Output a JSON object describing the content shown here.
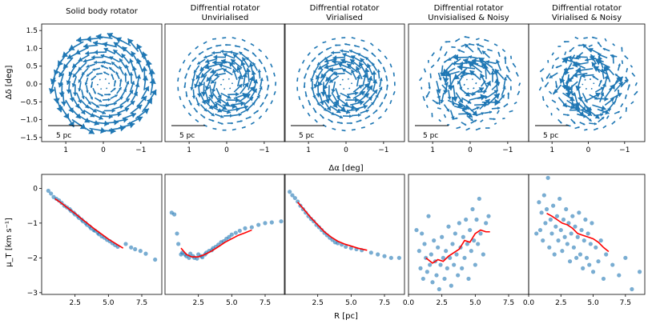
{
  "figure": {
    "top_ylabel": "Δδ [deg]",
    "top_xlabel": "Δα [deg]",
    "bottom_ylabel": "μ_T [km s⁻¹]",
    "bottom_xlabel": "R [pc]",
    "scalebar_label": "5 pc"
  },
  "chart_data": [
    {
      "type": "quiver",
      "title": "Solid body rotator",
      "xlim": [
        1.6,
        -1.6
      ],
      "ylim": [
        -1.7,
        1.6
      ],
      "xticks": [
        "1",
        "0",
        "−1"
      ],
      "yticks": [
        "1.5",
        "1.0",
        "0.5",
        "0.0",
        "−0.5",
        "−1.0",
        "−1.5"
      ],
      "field": "solid_body",
      "color": "#1f77b4"
    },
    {
      "type": "quiver",
      "title": "Diffrential rotator Unvirialised",
      "xlim": [
        1.6,
        -1.6
      ],
      "ylim": [
        -1.7,
        1.6
      ],
      "xticks": [
        "1",
        "0",
        "−1"
      ],
      "field": "differential",
      "color": "#1f77b4"
    },
    {
      "type": "quiver",
      "title": "Diffrential rotator Virialised",
      "xlim": [
        1.6,
        -1.6
      ],
      "ylim": [
        -1.7,
        1.6
      ],
      "xticks": [
        "1",
        "0",
        "−1"
      ],
      "field": "differential",
      "color": "#1f77b4"
    },
    {
      "type": "quiver",
      "title": "Diffrential rotator Unvisialised & Noisy",
      "xlim": [
        1.6,
        -1.6
      ],
      "ylim": [
        -1.7,
        1.6
      ],
      "xticks": [
        "1",
        "0",
        "−1"
      ],
      "field": "noisy",
      "color": "#1f77b4"
    },
    {
      "type": "quiver",
      "title": "Diffrential rotator Virialised & Noisy",
      "xlim": [
        1.6,
        -1.6
      ],
      "ylim": [
        -1.7,
        1.6
      ],
      "xticks": [
        "1",
        "0",
        "−1"
      ],
      "field": "noisy",
      "color": "#1f77b4"
    },
    {
      "type": "scatter",
      "xlim": [
        0,
        9
      ],
      "ylim": [
        -3.05,
        0.4
      ],
      "xticks": [
        "2.5",
        "5.0",
        "7.5"
      ],
      "yticks": [
        "0",
        "−1",
        "−2",
        "−3"
      ],
      "points": [
        [
          0.5,
          -0.07
        ],
        [
          0.7,
          -0.15
        ],
        [
          0.9,
          -0.25
        ],
        [
          1.1,
          -0.3
        ],
        [
          1.3,
          -0.35
        ],
        [
          1.5,
          -0.42
        ],
        [
          1.7,
          -0.5
        ],
        [
          1.9,
          -0.55
        ],
        [
          2.1,
          -0.6
        ],
        [
          2.2,
          -0.65
        ],
        [
          2.4,
          -0.7
        ],
        [
          2.5,
          -0.75
        ],
        [
          2.7,
          -0.8
        ],
        [
          2.8,
          -0.85
        ],
        [
          3.0,
          -0.9
        ],
        [
          3.1,
          -0.95
        ],
        [
          3.3,
          -1.0
        ],
        [
          3.4,
          -1.05
        ],
        [
          3.6,
          -1.1
        ],
        [
          3.7,
          -1.15
        ],
        [
          3.9,
          -1.2
        ],
        [
          4.0,
          -1.22
        ],
        [
          4.2,
          -1.28
        ],
        [
          4.3,
          -1.32
        ],
        [
          4.5,
          -1.38
        ],
        [
          4.7,
          -1.42
        ],
        [
          4.9,
          -1.48
        ],
        [
          5.1,
          -1.52
        ],
        [
          5.3,
          -1.58
        ],
        [
          5.5,
          -1.63
        ],
        [
          5.7,
          -1.68
        ],
        [
          6.3,
          -1.6
        ],
        [
          6.7,
          -1.7
        ],
        [
          7.0,
          -1.75
        ],
        [
          7.4,
          -1.8
        ],
        [
          7.8,
          -1.88
        ],
        [
          8.5,
          -2.05
        ]
      ],
      "line_x": [
        1.0,
        1.5,
        2.0,
        2.5,
        3.0,
        3.5,
        4.0,
        4.5,
        5.0,
        5.5,
        6.1
      ],
      "line_y": [
        -0.3,
        -0.43,
        -0.58,
        -0.72,
        -0.88,
        -1.03,
        -1.18,
        -1.32,
        -1.46,
        -1.58,
        -1.72
      ],
      "point_color": "#1f77b4",
      "line_color": "#ff0000"
    },
    {
      "type": "scatter",
      "xlim": [
        0,
        9
      ],
      "ylim": [
        -3.05,
        0.4
      ],
      "xticks": [
        "2.5",
        "5.0",
        "7.5"
      ],
      "points": [
        [
          0.5,
          -0.7
        ],
        [
          0.7,
          -0.75
        ],
        [
          0.9,
          -1.3
        ],
        [
          1.0,
          -1.6
        ],
        [
          1.2,
          -1.9
        ],
        [
          1.3,
          -1.85
        ],
        [
          1.5,
          -1.9
        ],
        [
          1.6,
          -1.95
        ],
        [
          1.8,
          -2.0
        ],
        [
          1.9,
          -1.88
        ],
        [
          2.1,
          -1.95
        ],
        [
          2.2,
          -2.0
        ],
        [
          2.4,
          -2.02
        ],
        [
          2.5,
          -1.9
        ],
        [
          2.7,
          -1.95
        ],
        [
          2.8,
          -1.98
        ],
        [
          3.0,
          -1.9
        ],
        [
          3.1,
          -1.85
        ],
        [
          3.3,
          -1.8
        ],
        [
          3.5,
          -1.78
        ],
        [
          3.6,
          -1.72
        ],
        [
          3.8,
          -1.68
        ],
        [
          4.0,
          -1.62
        ],
        [
          4.2,
          -1.55
        ],
        [
          4.4,
          -1.52
        ],
        [
          4.6,
          -1.45
        ],
        [
          4.8,
          -1.4
        ],
        [
          5.0,
          -1.33
        ],
        [
          5.3,
          -1.28
        ],
        [
          5.6,
          -1.22
        ],
        [
          6.0,
          -1.15
        ],
        [
          6.5,
          -1.12
        ],
        [
          7.0,
          -1.05
        ],
        [
          7.5,
          -1.0
        ],
        [
          8.0,
          -0.98
        ],
        [
          8.7,
          -0.95
        ]
      ],
      "line_x": [
        1.2,
        1.6,
        2.0,
        2.5,
        3.0,
        3.5,
        4.0,
        4.5,
        5.0,
        5.5,
        6.0,
        6.5
      ],
      "line_y": [
        -1.72,
        -1.9,
        -1.97,
        -1.97,
        -1.9,
        -1.8,
        -1.68,
        -1.55,
        -1.45,
        -1.35,
        -1.28,
        -1.2
      ],
      "point_color": "#1f77b4",
      "line_color": "#ff0000"
    },
    {
      "type": "scatter",
      "xlim": [
        0,
        9
      ],
      "ylim": [
        -3.05,
        0.4
      ],
      "xticks": [
        "2.5",
        "5.0",
        "7.5"
      ],
      "points": [
        [
          0.4,
          -0.1
        ],
        [
          0.6,
          -0.2
        ],
        [
          0.8,
          -0.28
        ],
        [
          1.0,
          -0.38
        ],
        [
          1.2,
          -0.5
        ],
        [
          1.4,
          -0.6
        ],
        [
          1.6,
          -0.7
        ],
        [
          1.8,
          -0.8
        ],
        [
          2.0,
          -0.88
        ],
        [
          2.2,
          -0.95
        ],
        [
          2.4,
          -1.05
        ],
        [
          2.6,
          -1.12
        ],
        [
          2.8,
          -1.2
        ],
        [
          3.0,
          -1.28
        ],
        [
          3.2,
          -1.35
        ],
        [
          3.4,
          -1.42
        ],
        [
          3.6,
          -1.48
        ],
        [
          3.8,
          -1.55
        ],
        [
          4.0,
          -1.58
        ],
        [
          4.3,
          -1.62
        ],
        [
          4.6,
          -1.68
        ],
        [
          5.0,
          -1.72
        ],
        [
          5.4,
          -1.75
        ],
        [
          5.8,
          -1.78
        ],
        [
          6.5,
          -1.85
        ],
        [
          7.0,
          -1.9
        ],
        [
          7.5,
          -1.95
        ],
        [
          8.0,
          -2.0
        ],
        [
          8.6,
          -2.0
        ]
      ],
      "line_x": [
        1.0,
        1.5,
        2.0,
        2.5,
        3.0,
        3.5,
        4.0,
        4.5,
        5.0,
        5.5,
        6.2
      ],
      "line_y": [
        -0.4,
        -0.62,
        -0.85,
        -1.05,
        -1.25,
        -1.4,
        -1.52,
        -1.6,
        -1.66,
        -1.72,
        -1.78
      ],
      "point_color": "#1f77b4",
      "line_color": "#ff0000"
    },
    {
      "type": "scatter",
      "xlim": [
        0,
        9
      ],
      "ylim": [
        -3.05,
        0.4
      ],
      "xticks": [
        "0.0",
        "2.5",
        "5.0",
        "7.5"
      ],
      "points": [
        [
          0.6,
          -1.2
        ],
        [
          0.8,
          -1.8
        ],
        [
          0.9,
          -2.3
        ],
        [
          1.0,
          -1.3
        ],
        [
          1.1,
          -2.6
        ],
        [
          1.2,
          -1.6
        ],
        [
          1.3,
          -2.0
        ],
        [
          1.4,
          -2.4
        ],
        [
          1.5,
          -0.8
        ],
        [
          1.6,
          -2.2
        ],
        [
          1.7,
          -1.9
        ],
        [
          1.8,
          -2.7
        ],
        [
          1.9,
          -1.5
        ],
        [
          2.0,
          -2.1
        ],
        [
          2.1,
          -2.5
        ],
        [
          2.2,
          -1.7
        ],
        [
          2.3,
          -2.9
        ],
        [
          2.4,
          -2.2
        ],
        [
          2.5,
          -1.4
        ],
        [
          2.6,
          -2.0
        ],
        [
          2.7,
          -2.6
        ],
        [
          2.8,
          -1.8
        ],
        [
          2.9,
          -2.3
        ],
        [
          3.0,
          -1.1
        ],
        [
          3.1,
          -2.0
        ],
        [
          3.2,
          -2.8
        ],
        [
          3.3,
          -1.6
        ],
        [
          3.4,
          -2.2
        ],
        [
          3.5,
          -1.3
        ],
        [
          3.6,
          -1.9
        ],
        [
          3.7,
          -2.5
        ],
        [
          3.8,
          -1.0
        ],
        [
          3.9,
          -1.7
        ],
        [
          4.0,
          -2.3
        ],
        [
          4.1,
          -1.4
        ],
        [
          4.2,
          -2.0
        ],
        [
          4.3,
          -0.9
        ],
        [
          4.4,
          -1.6
        ],
        [
          4.5,
          -2.6
        ],
        [
          4.6,
          -1.2
        ],
        [
          4.7,
          -1.8
        ],
        [
          4.8,
          -0.6
        ],
        [
          4.9,
          -1.5
        ],
        [
          5.0,
          -2.2
        ],
        [
          5.1,
          -0.9
        ],
        [
          5.2,
          -1.6
        ],
        [
          5.3,
          -0.3
        ],
        [
          5.4,
          -1.3
        ],
        [
          5.6,
          -1.9
        ],
        [
          5.8,
          -1.0
        ],
        [
          6.0,
          -0.8
        ]
      ],
      "line_x": [
        1.3,
        1.8,
        2.2,
        2.6,
        3.0,
        3.4,
        3.8,
        4.2,
        4.6,
        5.0,
        5.4,
        5.8,
        6.1
      ],
      "line_y": [
        -2.0,
        -2.15,
        -2.05,
        -2.1,
        -1.95,
        -1.85,
        -1.75,
        -1.5,
        -1.55,
        -1.3,
        -1.2,
        -1.25,
        -1.25
      ],
      "point_color": "#1f77b4",
      "line_color": "#ff0000"
    },
    {
      "type": "scatter",
      "xlim": [
        0,
        9
      ],
      "ylim": [
        -3.05,
        0.4
      ],
      "xticks": [
        "0.0",
        "2.5",
        "5.0",
        "7.5"
      ],
      "points": [
        [
          0.6,
          -1.3
        ],
        [
          0.8,
          -0.4
        ],
        [
          0.9,
          -1.2
        ],
        [
          1.0,
          -0.7
        ],
        [
          1.1,
          -1.5
        ],
        [
          1.2,
          -0.2
        ],
        [
          1.3,
          -1.0
        ],
        [
          1.4,
          -0.6
        ],
        [
          1.5,
          0.3
        ],
        [
          1.6,
          -1.7
        ],
        [
          1.7,
          -0.9
        ],
        [
          1.8,
          -1.3
        ],
        [
          1.9,
          -0.5
        ],
        [
          2.0,
          -1.9
        ],
        [
          2.1,
          -1.1
        ],
        [
          2.2,
          -0.8
        ],
        [
          2.3,
          -1.5
        ],
        [
          2.4,
          -0.3
        ],
        [
          2.5,
          -1.2
        ],
        [
          2.6,
          -1.8
        ],
        [
          2.7,
          -0.9
        ],
        [
          2.8,
          -1.4
        ],
        [
          2.9,
          -0.6
        ],
        [
          3.0,
          -1.6
        ],
        [
          3.1,
          -1.0
        ],
        [
          3.2,
          -2.1
        ],
        [
          3.3,
          -1.3
        ],
        [
          3.4,
          -0.8
        ],
        [
          3.5,
          -1.7
        ],
        [
          3.6,
          -1.1
        ],
        [
          3.7,
          -2.0
        ],
        [
          3.8,
          -1.4
        ],
        [
          3.9,
          -0.7
        ],
        [
          4.0,
          -1.9
        ],
        [
          4.1,
          -1.2
        ],
        [
          4.2,
          -2.3
        ],
        [
          4.3,
          -1.5
        ],
        [
          4.4,
          -0.9
        ],
        [
          4.5,
          -2.0
        ],
        [
          4.6,
          -1.3
        ],
        [
          4.7,
          -2.2
        ],
        [
          4.8,
          -1.6
        ],
        [
          4.9,
          -1.0
        ],
        [
          5.0,
          -2.4
        ],
        [
          5.2,
          -1.7
        ],
        [
          5.4,
          -2.1
        ],
        [
          5.6,
          -1.5
        ],
        [
          5.8,
          -2.6
        ],
        [
          6.0,
          -1.9
        ],
        [
          6.5,
          -2.2
        ],
        [
          7.0,
          -2.5
        ],
        [
          7.5,
          -2.0
        ],
        [
          8.0,
          -2.9
        ],
        [
          8.6,
          -2.4
        ]
      ],
      "line_x": [
        1.4,
        1.8,
        2.2,
        2.6,
        3.0,
        3.4,
        3.8,
        4.2,
        4.6,
        5.0,
        5.4,
        5.8,
        6.2
      ],
      "line_y": [
        -0.72,
        -0.8,
        -0.9,
        -1.0,
        -1.05,
        -1.15,
        -1.3,
        -1.35,
        -1.4,
        -1.45,
        -1.55,
        -1.7,
        -1.82
      ],
      "point_color": "#1f77b4",
      "line_color": "#ff0000"
    }
  ]
}
